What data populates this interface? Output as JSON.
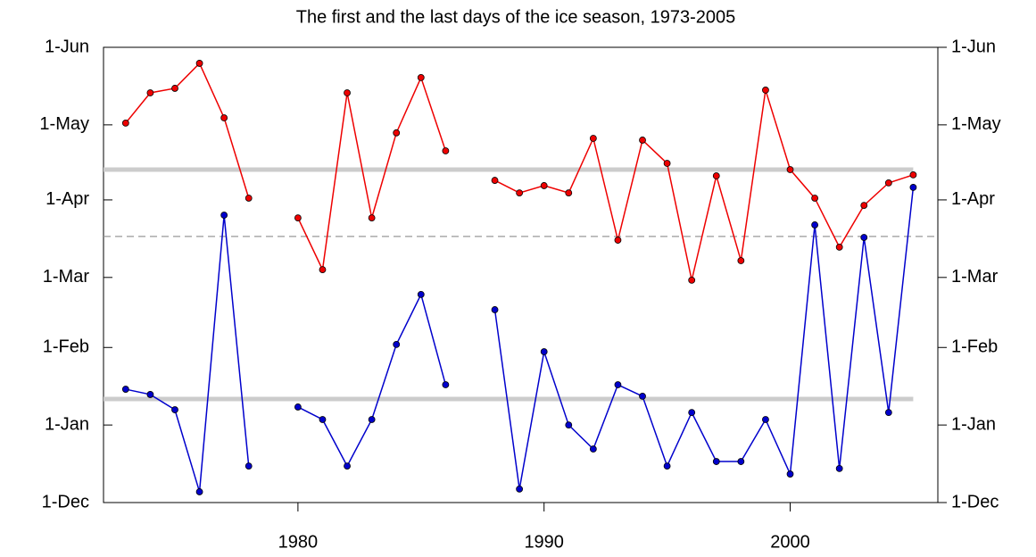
{
  "chart_data": {
    "type": "line",
    "title": "The first and the last days of the ice season, 1973-2005",
    "x": [
      1973,
      1974,
      1975,
      1976,
      1977,
      1978,
      1979,
      1980,
      1981,
      1982,
      1983,
      1984,
      1985,
      1986,
      1987,
      1988,
      1989,
      1990,
      1991,
      1992,
      1993,
      1994,
      1995,
      1996,
      1997,
      1998,
      1999,
      2000,
      2001,
      2002,
      2003,
      2004,
      2005
    ],
    "series": [
      {
        "color": "#ee0000",
        "values": [
          151.7,
          163.8,
          165.6,
          175.6,
          153.8,
          121.7,
          null,
          113.8,
          93.1,
          163.8,
          113.8,
          147.8,
          169.9,
          140.6,
          null,
          128.8,
          123.8,
          126.7,
          123.8,
          145.6,
          104.9,
          144.9,
          135.6,
          88.9,
          130.6,
          96.7,
          164.9,
          133.1,
          121.7,
          102.1,
          118.8,
          127.8,
          131.0
        ]
      },
      {
        "color": "#0000cc",
        "values": [
          45.3,
          43.2,
          37.1,
          4.3,
          114.9,
          14.6,
          null,
          38.2,
          33.2,
          14.6,
          33.2,
          63.2,
          83.2,
          47.1,
          null,
          77.1,
          5.4,
          60.3,
          31.0,
          21.4,
          47.1,
          42.5,
          14.6,
          36.0,
          16.4,
          16.4,
          33.2,
          11.4,
          111.0,
          13.6,
          106.0,
          36.0,
          126.0
        ]
      }
    ],
    "reference_lines": [
      {
        "value": 133.1,
        "style": "solid",
        "color": "#cccccc"
      },
      {
        "value": 41.4,
        "style": "solid",
        "color": "#cccccc"
      },
      {
        "value": 106.4,
        "style": "dashed",
        "color": "#999999"
      }
    ],
    "xlim": [
      1972.1,
      2006
    ],
    "xticks": [
      1980,
      1990,
      2000
    ],
    "ylim": [
      0,
      182
    ],
    "yticks": [
      {
        "value": 0,
        "label": "1-Dec"
      },
      {
        "value": 31,
        "label": "1-Jan"
      },
      {
        "value": 62,
        "label": "1-Feb"
      },
      {
        "value": 90,
        "label": "1-Mar"
      },
      {
        "value": 121,
        "label": "1-Apr"
      },
      {
        "value": 151,
        "label": "1-May"
      },
      {
        "value": 182,
        "label": "1-Jun"
      }
    ],
    "right_axis_labels": true
  }
}
